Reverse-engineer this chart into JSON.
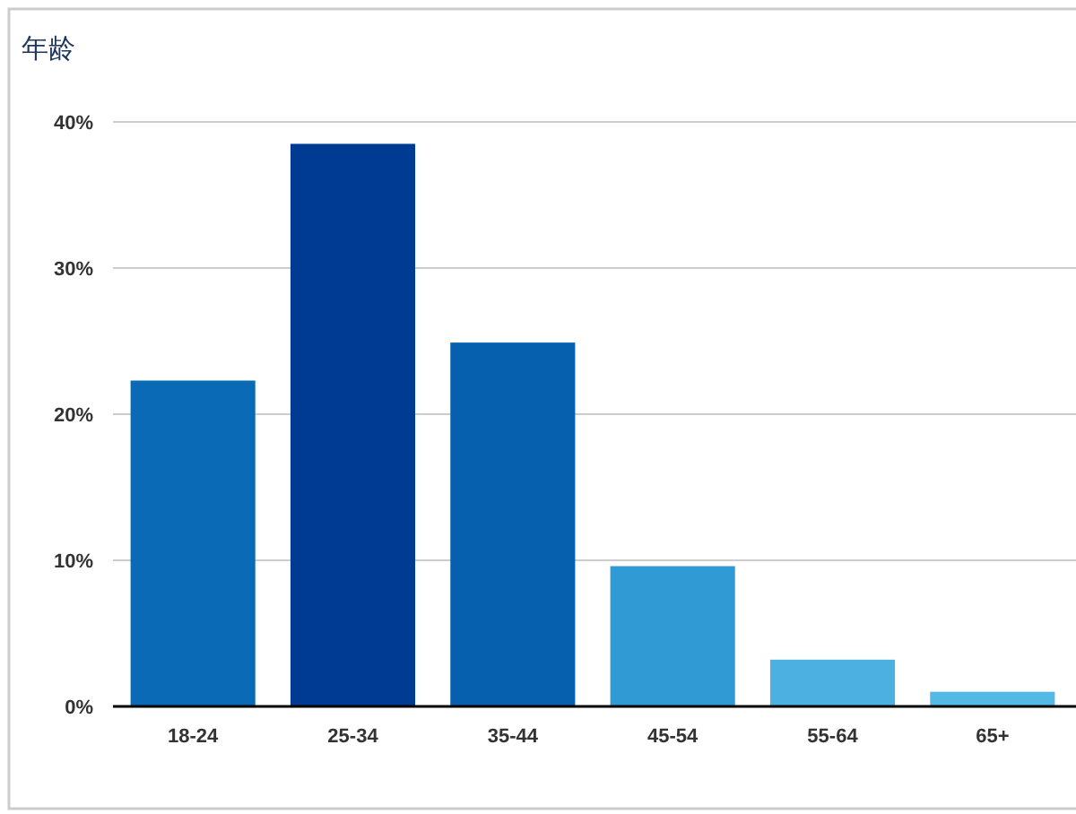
{
  "chart_data": {
    "type": "bar",
    "title": "年龄",
    "categories": [
      "18-24",
      "25-34",
      "35-44",
      "45-54",
      "55-64",
      "65+"
    ],
    "values": [
      22.3,
      38.5,
      24.9,
      9.6,
      3.2,
      1.0
    ],
    "colors": [
      "#0b6ab5",
      "#003b93",
      "#0660ae",
      "#2f9ad3",
      "#4cb0e0",
      "#55b9e6"
    ],
    "ylim": [
      0,
      40
    ],
    "yticks": [
      {
        "value": 0,
        "label": "0%"
      },
      {
        "value": 10,
        "label": "10%"
      },
      {
        "value": 20,
        "label": "20%"
      },
      {
        "value": 30,
        "label": "30%"
      },
      {
        "value": 40,
        "label": "40%"
      }
    ],
    "grid": "y"
  }
}
